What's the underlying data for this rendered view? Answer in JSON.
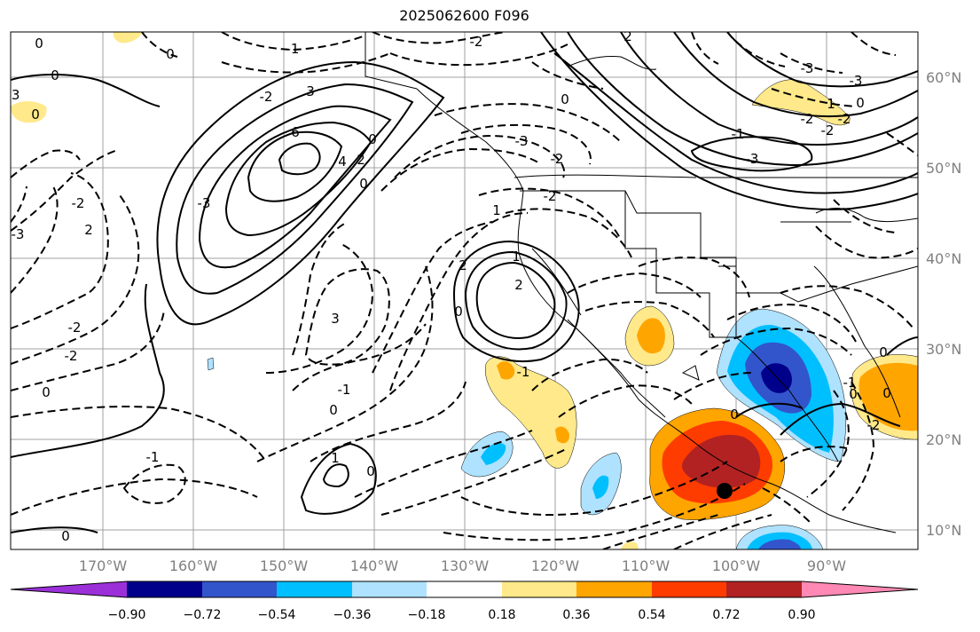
{
  "title": "2025062600 F096",
  "longitude_labels": [
    "170°W",
    "160°W",
    "150°W",
    "140°W",
    "130°W",
    "120°W",
    "110°W",
    "100°W",
    "90°W"
  ],
  "latitude_labels": [
    "60°N",
    "50°N",
    "40°N",
    "30°N",
    "20°N",
    "10°N"
  ],
  "colorbar": {
    "ticks": [
      "−0.90",
      "−0.72",
      "−0.54",
      "−0.36",
      "−0.18",
      "0.18",
      "0.36",
      "0.54",
      "0.72",
      "0.90"
    ],
    "colors": [
      "#9b30d9",
      "#00008b",
      "#3355cc",
      "#00bfff",
      "#aee2ff",
      "#ffffff",
      "#ffe98a",
      "#ffa500",
      "#ff3c00",
      "#b22222",
      "#ff89b4"
    ]
  },
  "contour_labels": [
    "0",
    "-1",
    "0",
    "-2",
    "2",
    "-2",
    "1",
    "-3",
    "0",
    "3",
    "-2",
    "-1",
    "6",
    "-3",
    "-2",
    "4",
    "2",
    "0",
    "-3",
    "0",
    "-2",
    "-2",
    "2",
    "3",
    "1",
    "-2",
    "-3",
    "-1",
    "0",
    "0",
    "-2",
    "0",
    "-1",
    "2",
    "0",
    "1",
    "-2",
    "2",
    "0",
    "0",
    "-3",
    "0",
    "0",
    "1",
    "-1",
    "-1",
    "0",
    "0",
    "0",
    "-2",
    "0",
    "-2",
    "-3",
    "-3"
  ],
  "marker": {
    "name": "black-dot"
  }
}
